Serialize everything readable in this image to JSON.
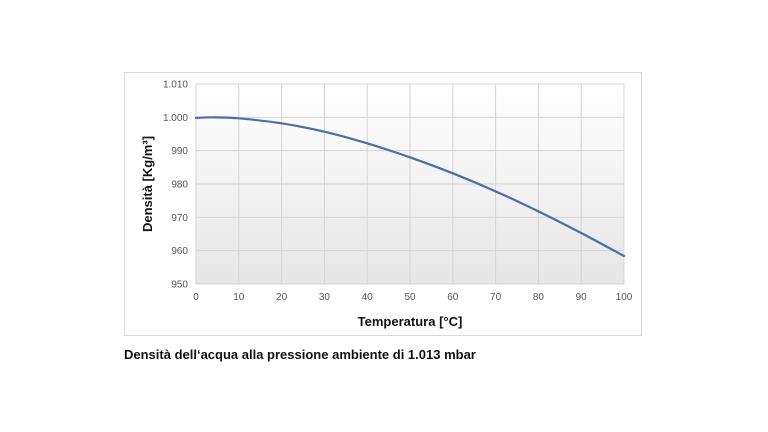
{
  "caption": "Densità dell‘acqua alla pressione ambiente di 1.013 mbar",
  "chart_data": {
    "type": "line",
    "title": "",
    "xlabel": "Temperatura [°C]",
    "ylabel": "Densità [Kg/m³]",
    "xlim": [
      0,
      100
    ],
    "ylim": [
      950,
      1010
    ],
    "xticks": [
      "0",
      "10",
      "20",
      "30",
      "40",
      "50",
      "60",
      "70",
      "80",
      "90",
      "100"
    ],
    "yticks": [
      "950",
      "960",
      "970",
      "980",
      "990",
      "1.000",
      "1.010"
    ],
    "grid": true,
    "legend": "none",
    "series": [
      {
        "color": "#4a6fa5",
        "x": [
          0,
          4,
          10,
          20,
          30,
          40,
          50,
          60,
          70,
          80,
          90,
          100
        ],
        "y": [
          999.8,
          1000.0,
          999.7,
          998.2,
          995.7,
          992.2,
          988.0,
          983.2,
          977.8,
          971.8,
          965.3,
          958.4
        ]
      }
    ]
  }
}
